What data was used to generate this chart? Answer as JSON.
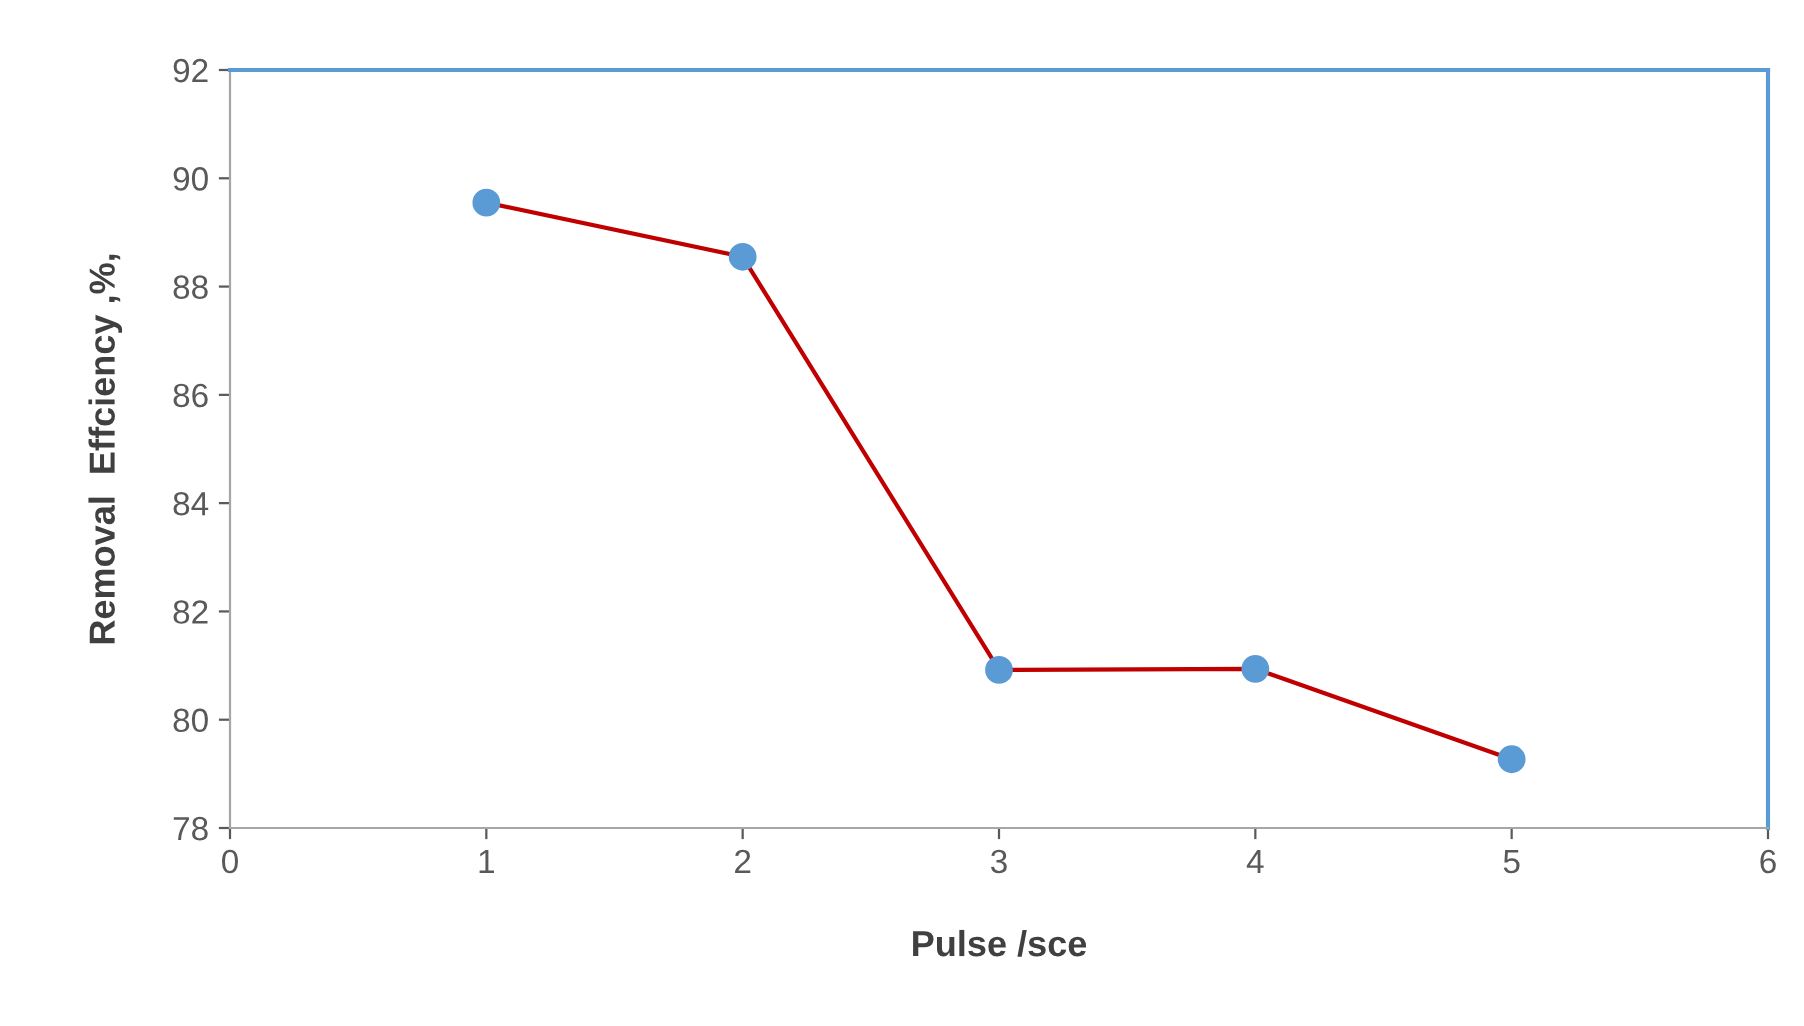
{
  "chart_data": {
    "type": "line",
    "xlabel": "Pulse /sce",
    "ylabel": "Removal  Effciency ,%,",
    "x": [
      1,
      2,
      3,
      4,
      5
    ],
    "series": [
      {
        "color": "#c00000",
        "colors": [
          "#5b9bd5",
          "#5b9bd5",
          "#5b9bd5",
          "#5b9bd5",
          "#5b9bd5"
        ],
        "values": [
          89.55,
          88.55,
          80.92,
          80.94,
          79.27
        ]
      }
    ],
    "xlim": [
      0,
      6
    ],
    "xticks": [
      0,
      1,
      2,
      3,
      4,
      5,
      6
    ],
    "ylim": [
      78,
      92
    ],
    "yticks": [
      78,
      80,
      82,
      84,
      86,
      88,
      90,
      92
    ],
    "marker": "circle",
    "line_style": "solid",
    "grid": false,
    "legend": false
  }
}
